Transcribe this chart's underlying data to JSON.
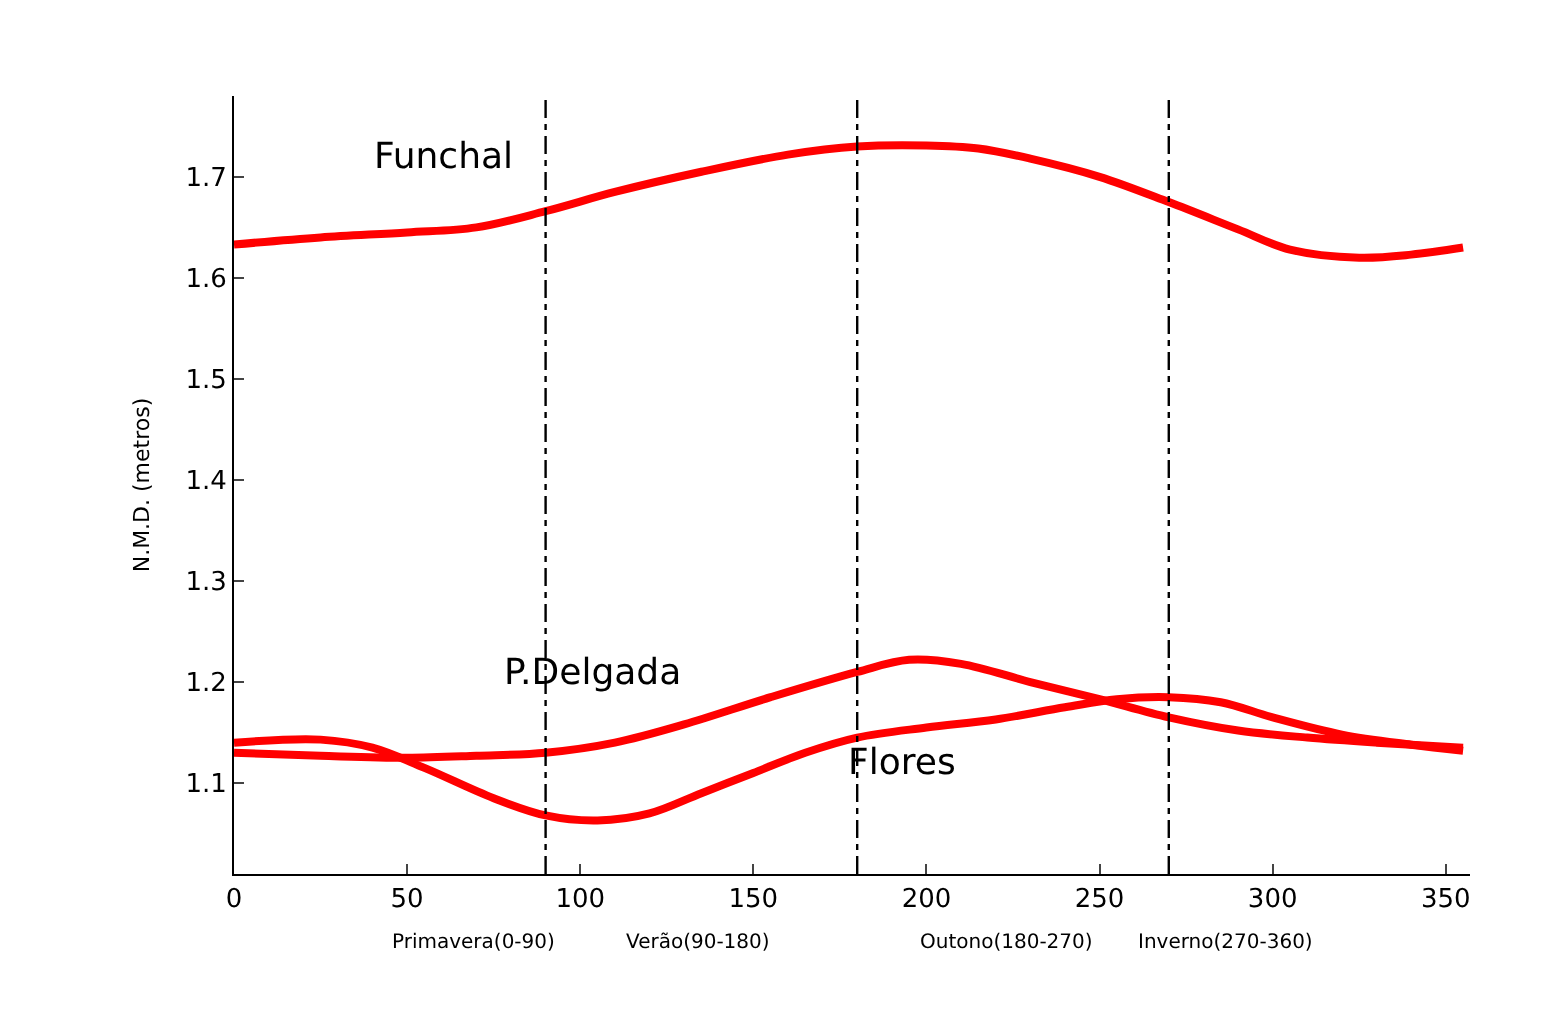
{
  "chart_data": {
    "type": "line",
    "ylabel": "N.M.D. (metros)",
    "xlim": [
      0,
      357
    ],
    "xticks": [
      0,
      50,
      100,
      150,
      200,
      250,
      300,
      350
    ],
    "ylim": [
      1.01,
      1.78
    ],
    "yticks": [
      1.1,
      1.2,
      1.3,
      1.4,
      1.5,
      1.6,
      1.7
    ],
    "legend": false,
    "marker": "none",
    "line_style": "solid",
    "series": [
      {
        "name": "Funchal",
        "color": "#ff0000",
        "x": [
          0,
          25,
          50,
          70,
          90,
          110,
          135,
          160,
          180,
          200,
          215,
          230,
          250,
          270,
          290,
          305,
          325,
          340,
          355
        ],
        "values": [
          1.633,
          1.64,
          1.645,
          1.65,
          1.666,
          1.685,
          1.705,
          1.722,
          1.73,
          1.731,
          1.728,
          1.718,
          1.7,
          1.675,
          1.648,
          1.628,
          1.62,
          1.623,
          1.63
        ]
      },
      {
        "name": "P.Delgada",
        "color": "#ff0000",
        "x": [
          0,
          25,
          50,
          70,
          90,
          110,
          130,
          155,
          180,
          195,
          210,
          230,
          250,
          270,
          290,
          310,
          330,
          355
        ],
        "values": [
          1.13,
          1.127,
          1.125,
          1.127,
          1.13,
          1.14,
          1.158,
          1.185,
          1.21,
          1.222,
          1.218,
          1.2,
          1.183,
          1.165,
          1.152,
          1.145,
          1.14,
          1.135
        ]
      },
      {
        "name": "Flores",
        "color": "#ff0000",
        "x": [
          0,
          25,
          40,
          55,
          75,
          90,
          105,
          120,
          135,
          150,
          165,
          180,
          200,
          220,
          240,
          255,
          270,
          285,
          300,
          320,
          340,
          355
        ],
        "values": [
          1.14,
          1.143,
          1.135,
          1.115,
          1.085,
          1.068,
          1.063,
          1.07,
          1.09,
          1.11,
          1.13,
          1.145,
          1.155,
          1.163,
          1.175,
          1.183,
          1.185,
          1.18,
          1.165,
          1.148,
          1.138,
          1.132
        ]
      }
    ],
    "ref_lines": [
      {
        "axis": "x",
        "value": 90,
        "color": "#000000",
        "line_style": "dashdot"
      },
      {
        "axis": "x",
        "value": 180,
        "color": "#000000",
        "line_style": "dashdot"
      },
      {
        "axis": "x",
        "value": 270,
        "color": "#000000",
        "line_style": "dashdot"
      }
    ],
    "annotations": [
      "Primavera(0-90)",
      "Verão(90-180)",
      "Outono(180-270)",
      "Inverno(270-360)"
    ]
  }
}
